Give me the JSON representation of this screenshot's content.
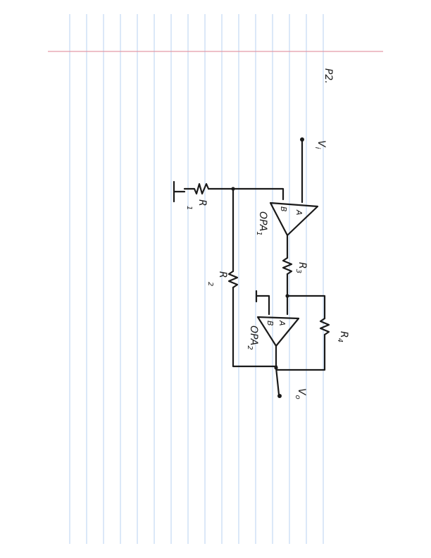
{
  "page": {
    "problem_label": "P2.",
    "ink_color": "#1a1a1a",
    "rule_color": "#c3d9f2",
    "margin_color": "#e39aa6"
  },
  "circuit": {
    "input": {
      "symbol": "V",
      "sub": "i"
    },
    "output": {
      "symbol": "V",
      "sub": "o"
    },
    "opamps": [
      {
        "label": "OPA",
        "sub": "1",
        "in_a": "A",
        "in_b": "B"
      },
      {
        "label": "OPA",
        "sub": "2",
        "in_a": "A",
        "in_b": "B"
      }
    ],
    "resistors": [
      {
        "symbol": "R",
        "sub": "1"
      },
      {
        "symbol": "R",
        "sub": "2"
      },
      {
        "symbol": "R",
        "sub": "3"
      },
      {
        "symbol": "R",
        "sub": "4"
      }
    ],
    "icons": [
      "ground-icon",
      "resistor-icon",
      "opamp-triangle-icon",
      "terminal-dot-icon"
    ]
  }
}
